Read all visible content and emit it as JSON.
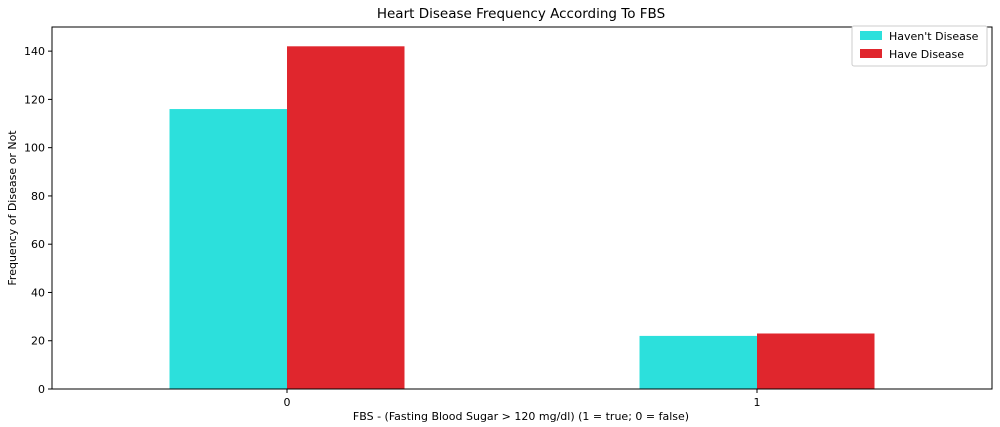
{
  "chart_data": {
    "type": "bar",
    "title": "Heart Disease Frequency According To FBS",
    "xlabel": "FBS - (Fasting Blood Sugar > 120 mg/dl) (1 = true; 0 = false)",
    "ylabel": "Frequency of Disease or Not",
    "categories": [
      "0",
      "1"
    ],
    "series": [
      {
        "name": "Haven't Disease",
        "values": [
          116,
          22
        ],
        "color": "#2ce0dc"
      },
      {
        "name": "Have Disease",
        "values": [
          142,
          23
        ],
        "color": "#e0262d"
      }
    ],
    "ylim": [
      0,
      150
    ],
    "yticks": [
      0,
      20,
      40,
      60,
      80,
      100,
      120,
      140
    ],
    "grid": false,
    "legend_position": "top-right"
  }
}
